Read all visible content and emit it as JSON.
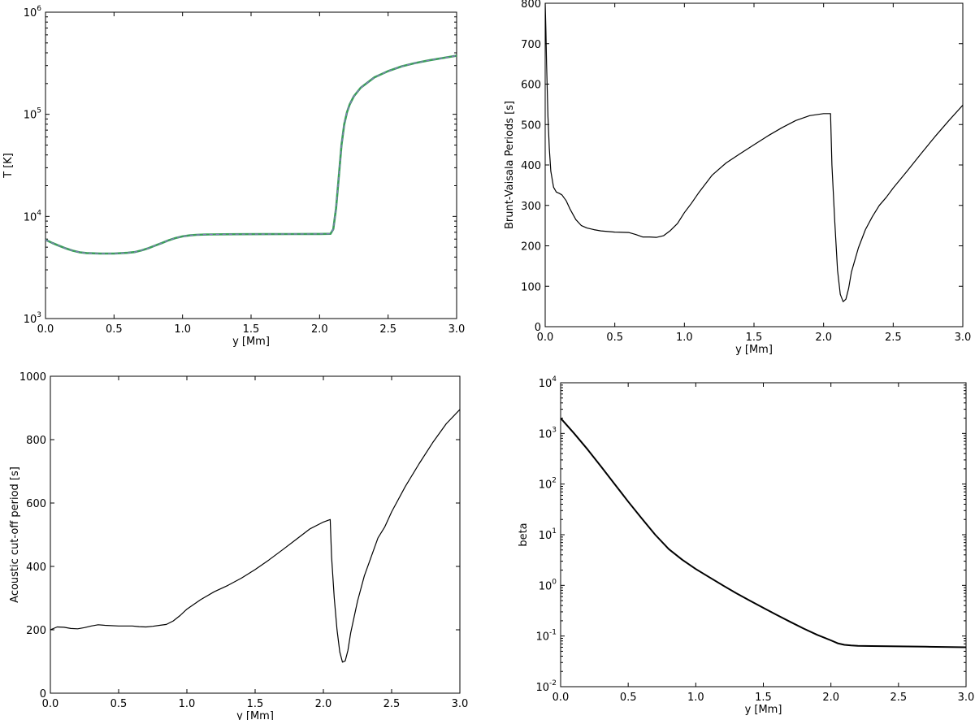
{
  "chart_data": [
    {
      "id": "temperature",
      "type": "line",
      "xlabel": "y [Mm]",
      "ylabel": "T [K]",
      "xlim": [
        0,
        3
      ],
      "ylim": [
        1000,
        1000000
      ],
      "yscale": "log",
      "xticks": [
        "0.0",
        "0.5",
        "1.0",
        "1.5",
        "2.0",
        "2.5",
        "3.0"
      ],
      "yticks": [
        {
          "base": "10",
          "exp": "3"
        },
        {
          "base": "10",
          "exp": "4"
        },
        {
          "base": "10",
          "exp": "5"
        },
        {
          "base": "10",
          "exp": "6"
        }
      ],
      "grid": false,
      "series": [
        {
          "color": "#3a9f5a",
          "accent_color": "#8c73c8",
          "dashed_overlay": true,
          "x": [
            0,
            0.05,
            0.1,
            0.15,
            0.2,
            0.25,
            0.3,
            0.4,
            0.5,
            0.6,
            0.65,
            0.7,
            0.75,
            0.8,
            0.85,
            0.9,
            0.95,
            1.0,
            1.05,
            1.1,
            1.15,
            1.2,
            1.3,
            1.4,
            1.6,
            1.8,
            2.0,
            2.08,
            2.1,
            2.12,
            2.14,
            2.16,
            2.18,
            2.2,
            2.22,
            2.25,
            2.3,
            2.4,
            2.5,
            2.6,
            2.7,
            2.8,
            2.9,
            3.0
          ],
          "y": [
            5900,
            5500,
            5150,
            4850,
            4620,
            4450,
            4380,
            4330,
            4330,
            4400,
            4480,
            4650,
            4880,
            5180,
            5500,
            5850,
            6150,
            6380,
            6520,
            6600,
            6640,
            6660,
            6690,
            6700,
            6710,
            6720,
            6730,
            6760,
            7500,
            12000,
            24000,
            50000,
            80000,
            105000,
            125000,
            150000,
            182000,
            230000,
            265000,
            295000,
            318000,
            338000,
            356000,
            375000
          ]
        }
      ]
    },
    {
      "id": "brunt-vaisala",
      "type": "line",
      "xlabel": "y [Mm]",
      "ylabel": "Brunt-Vaisala Periods [s]",
      "xlim": [
        0,
        3
      ],
      "ylim": [
        0,
        800
      ],
      "xticks": [
        "0.0",
        "0.5",
        "1.0",
        "1.5",
        "2.0",
        "2.5",
        "3.0"
      ],
      "yticks": [
        "0",
        "100",
        "200",
        "300",
        "400",
        "500",
        "600",
        "700",
        "800"
      ],
      "grid": false,
      "series": [
        {
          "color": "#000000",
          "x": [
            0,
            0.005,
            0.01,
            0.02,
            0.03,
            0.04,
            0.06,
            0.08,
            0.1,
            0.12,
            0.15,
            0.18,
            0.22,
            0.26,
            0.3,
            0.35,
            0.4,
            0.5,
            0.6,
            0.65,
            0.7,
            0.75,
            0.8,
            0.85,
            0.9,
            0.95,
            1.0,
            1.05,
            1.1,
            1.2,
            1.3,
            1.4,
            1.5,
            1.6,
            1.7,
            1.8,
            1.9,
            2.0,
            2.05,
            2.06,
            2.08,
            2.1,
            2.12,
            2.14,
            2.16,
            2.18,
            2.2,
            2.25,
            2.3,
            2.35,
            2.4,
            2.45,
            2.5,
            2.6,
            2.7,
            2.8,
            2.9,
            3.0
          ],
          "y": [
            800,
            730,
            650,
            520,
            440,
            385,
            345,
            333,
            330,
            326,
            312,
            290,
            265,
            250,
            244,
            240,
            237,
            234,
            233,
            228,
            222,
            222,
            221,
            225,
            238,
            255,
            282,
            305,
            330,
            375,
            405,
            428,
            450,
            472,
            492,
            510,
            522,
            527,
            527,
            400,
            260,
            140,
            80,
            62,
            68,
            95,
            135,
            195,
            240,
            272,
            300,
            320,
            343,
            385,
            428,
            470,
            510,
            548
          ]
        }
      ]
    },
    {
      "id": "acoustic-cutoff",
      "type": "line",
      "xlabel": "y [Mm]",
      "ylabel": "Acoustic cut-off period [s]",
      "xlim": [
        0,
        3
      ],
      "ylim": [
        0,
        1000
      ],
      "xticks": [
        "0.0",
        "0.5",
        "1.0",
        "1.5",
        "2.0",
        "2.5",
        "3.0"
      ],
      "yticks": [
        "0",
        "200",
        "400",
        "600",
        "800",
        "1000"
      ],
      "grid": false,
      "series": [
        {
          "color": "#000000",
          "x": [
            0,
            0.05,
            0.1,
            0.15,
            0.2,
            0.25,
            0.3,
            0.35,
            0.4,
            0.5,
            0.6,
            0.65,
            0.7,
            0.75,
            0.8,
            0.85,
            0.9,
            0.95,
            1.0,
            1.1,
            1.2,
            1.3,
            1.4,
            1.5,
            1.6,
            1.7,
            1.8,
            1.9,
            2.0,
            2.05,
            2.06,
            2.08,
            2.1,
            2.12,
            2.14,
            2.16,
            2.18,
            2.2,
            2.25,
            2.3,
            2.35,
            2.4,
            2.45,
            2.5,
            2.6,
            2.7,
            2.8,
            2.9,
            3.0
          ],
          "y": [
            200,
            209,
            208,
            204,
            203,
            207,
            212,
            216,
            214,
            212,
            212,
            210,
            209,
            211,
            214,
            217,
            228,
            245,
            265,
            295,
            320,
            340,
            363,
            390,
            420,
            452,
            485,
            518,
            540,
            548,
            430,
            300,
            200,
            130,
            98,
            102,
            135,
            190,
            290,
            370,
            430,
            490,
            525,
            572,
            652,
            723,
            790,
            850,
            895
          ]
        }
      ]
    },
    {
      "id": "beta",
      "type": "line",
      "xlabel": "y [Mm]",
      "ylabel": "beta",
      "xlim": [
        0,
        3
      ],
      "ylim": [
        0.01,
        10000
      ],
      "yscale": "log",
      "xticks": [
        "0.0",
        "0.5",
        "1.0",
        "1.5",
        "2.0",
        "2.5",
        "3.0"
      ],
      "yticks": [
        {
          "base": "10",
          "exp": "-2"
        },
        {
          "base": "10",
          "exp": "-1"
        },
        {
          "base": "10",
          "exp": "0"
        },
        {
          "base": "10",
          "exp": "1"
        },
        {
          "base": "10",
          "exp": "2"
        },
        {
          "base": "10",
          "exp": "3"
        },
        {
          "base": "10",
          "exp": "4"
        }
      ],
      "grid": false,
      "series": [
        {
          "color": "#000000",
          "x": [
            0,
            0.1,
            0.2,
            0.3,
            0.4,
            0.5,
            0.6,
            0.7,
            0.8,
            0.9,
            1.0,
            1.1,
            1.2,
            1.3,
            1.4,
            1.5,
            1.6,
            1.7,
            1.8,
            1.9,
            2.0,
            2.05,
            2.1,
            2.15,
            2.2,
            2.3,
            2.5,
            2.7,
            3.0
          ],
          "y": [
            2000,
            1000,
            480,
            220,
            100,
            45,
            21,
            10,
            5.2,
            3.2,
            2.1,
            1.45,
            1.0,
            0.7,
            0.5,
            0.36,
            0.26,
            0.19,
            0.14,
            0.105,
            0.082,
            0.072,
            0.067,
            0.065,
            0.064,
            0.0635,
            0.0625,
            0.0615,
            0.06
          ]
        }
      ]
    }
  ]
}
